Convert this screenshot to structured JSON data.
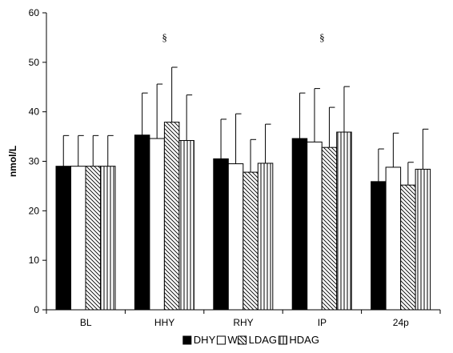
{
  "chart_data": {
    "type": "bar",
    "title": "",
    "xlabel": "",
    "ylabel": "nmol/L",
    "ylim": [
      0,
      60
    ],
    "yticks": [
      0,
      10,
      20,
      30,
      40,
      50,
      60
    ],
    "grid": false,
    "legend_position": "bottom",
    "categories": [
      "BL",
      "HHY",
      "RHY",
      "IP",
      "24p"
    ],
    "series": [
      {
        "name": "DHY",
        "fill": "solid-black",
        "values": [
          29.0,
          35.3,
          30.5,
          34.6,
          25.9
        ],
        "error": [
          6.2,
          8.5,
          8.0,
          9.2,
          6.6
        ]
      },
      {
        "name": "W",
        "fill": "white",
        "values": [
          29.0,
          34.6,
          29.5,
          33.9,
          28.8
        ],
        "error": [
          6.2,
          11.0,
          10.1,
          10.8,
          6.9
        ]
      },
      {
        "name": "LDAG",
        "fill": "diagonal-hatch",
        "values": [
          29.0,
          37.9,
          27.8,
          32.8,
          25.2
        ],
        "error": [
          6.2,
          11.1,
          6.6,
          8.1,
          4.6
        ]
      },
      {
        "name": "HDAG",
        "fill": "vertical-hatch",
        "values": [
          29.0,
          34.2,
          29.6,
          35.9,
          28.4
        ],
        "error": [
          6.2,
          9.2,
          7.9,
          9.2,
          8.1
        ]
      }
    ],
    "annotations": [
      {
        "text": "§",
        "category": "HHY",
        "y": 54
      },
      {
        "text": "§",
        "category": "IP",
        "y": 54
      }
    ]
  }
}
